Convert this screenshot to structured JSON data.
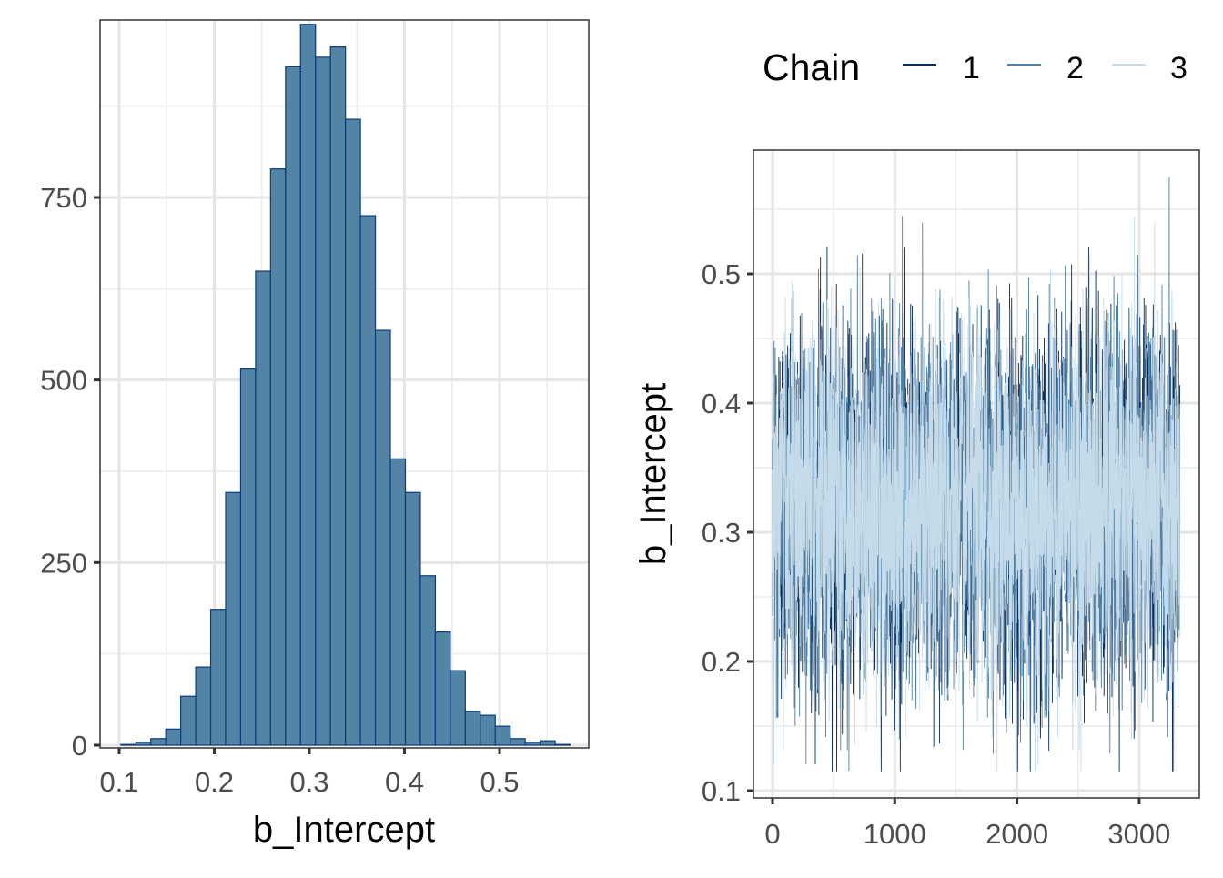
{
  "chart_data": [
    {
      "type": "bar",
      "subtype": "histogram",
      "xlabel": "b_Intercept",
      "ylabel": "",
      "xlim": [
        0.09,
        0.595
      ],
      "ylim": [
        0,
        995
      ],
      "x_ticks": [
        "0.1",
        "0.2",
        "0.3",
        "0.4",
        "0.5"
      ],
      "y_ticks": [
        "0",
        "250",
        "500",
        "750"
      ],
      "bin_start": 0.1017,
      "bin_width": 0.01575,
      "values": [
        1,
        4,
        9,
        22,
        67,
        107,
        186,
        346,
        515,
        649,
        789,
        929,
        987,
        942,
        956,
        857,
        725,
        568,
        392,
        346,
        232,
        155,
        102,
        46,
        41,
        26,
        9,
        4,
        6,
        1
      ],
      "fill_color": "#5384a5",
      "edge_color": "#0b3b7a",
      "grid": true
    },
    {
      "type": "line",
      "subtype": "trace",
      "xlabel": "",
      "ylabel": "b_Intercept",
      "xlim": [
        -150,
        3500
      ],
      "ylim": [
        0.095,
        0.6
      ],
      "x_ticks": [
        "0",
        "1000",
        "2000",
        "3000"
      ],
      "y_ticks": [
        "0.1",
        "0.2",
        "0.3",
        "0.4",
        "0.5"
      ],
      "iterations": 3334,
      "series_summary": {
        "mean": 0.32,
        "sd": 0.065,
        "min": 0.115,
        "max": 0.575
      },
      "legend": {
        "title": "Chain",
        "position": "top",
        "entries": [
          {
            "label": "1",
            "color": "#0a2f5c"
          },
          {
            "label": "2",
            "color": "#4f7fa3"
          },
          {
            "label": "3",
            "color": "#c6dbea"
          }
        ]
      },
      "grid": true
    }
  ]
}
